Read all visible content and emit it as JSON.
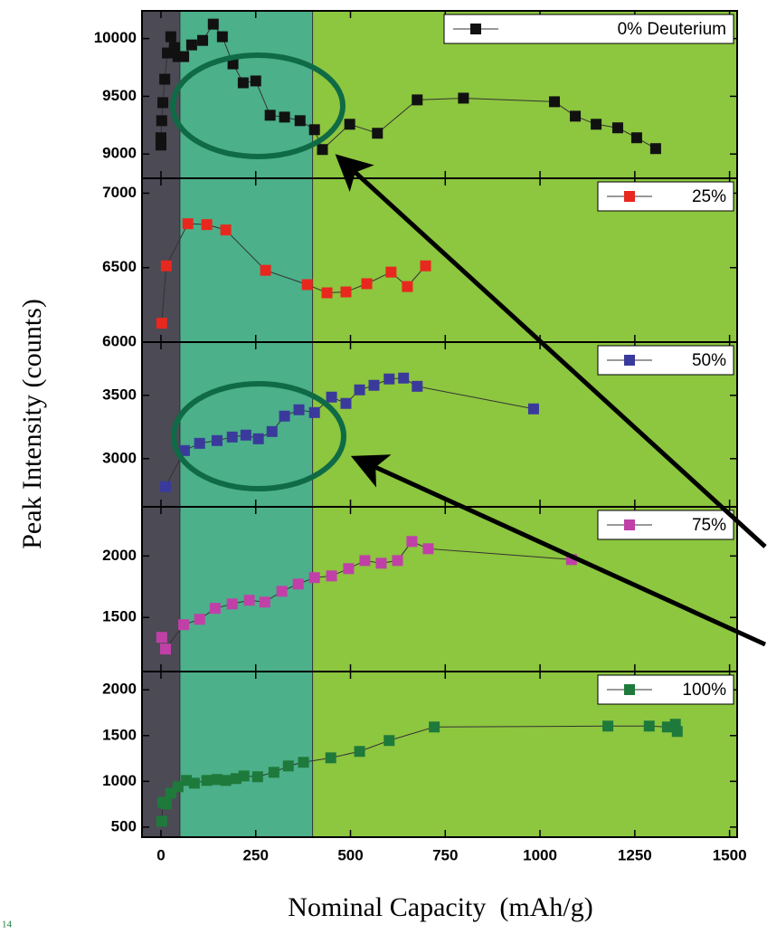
{
  "chart_data": [
    {
      "type": "scatter_line",
      "series": [
        {
          "name": "0% Deuterium",
          "color": "#111111",
          "x": [
            0,
            0,
            2,
            5,
            10,
            17,
            26,
            36,
            45,
            60,
            81,
            110,
            138,
            162,
            190,
            217,
            250,
            288,
            326,
            367,
            405,
            426,
            498,
            571,
            676,
            798,
            1038,
            1093,
            1148,
            1205,
            1255,
            1305
          ],
          "values": [
            9078,
            9141,
            9289,
            9445,
            9648,
            9875,
            10016,
            9922,
            9844,
            9844,
            9945,
            9984,
            10125,
            10016,
            9781,
            9617,
            9633,
            9336,
            9320,
            9289,
            9211,
            9039,
            9258,
            9180,
            9469,
            9484,
            9453,
            9328,
            9258,
            9227,
            9141,
            9047
          ]
        }
      ],
      "ylim": [
        8790,
        10240
      ],
      "yticks": [
        9000,
        9500,
        10000
      ],
      "legend": "upper right"
    },
    {
      "type": "scatter_line",
      "series": [
        {
          "name": "25%",
          "color": "#e8281e",
          "x": [
            2,
            14,
            71,
            121,
            171,
            276,
            386,
            438,
            488,
            543,
            607,
            650,
            698
          ],
          "values": [
            6127,
            6512,
            6795,
            6789,
            6753,
            6482,
            6386,
            6331,
            6337,
            6392,
            6470,
            6373,
            6512
          ]
        }
      ],
      "ylim": [
        6000,
        7100
      ],
      "yticks": [
        6000,
        6500,
        7000
      ],
      "legend": "upper right"
    },
    {
      "type": "scatter_line",
      "series": [
        {
          "name": "50%",
          "color": "#3a3a9c",
          "x": [
            12,
            62,
            102,
            148,
            188,
            224,
            257,
            293,
            326,
            364,
            405,
            450,
            488,
            524,
            562,
            602,
            640,
            676,
            983
          ],
          "values": [
            2779,
            3064,
            3121,
            3143,
            3171,
            3186,
            3157,
            3214,
            3336,
            3386,
            3364,
            3486,
            3436,
            3543,
            3579,
            3629,
            3636,
            3571,
            3393
          ]
        }
      ],
      "ylim": [
        2620,
        3920
      ],
      "yticks": [
        3000,
        3500
      ],
      "legend": "upper right",
      "ylabel": "Peak Intensity (counts)"
    },
    {
      "type": "scatter_line",
      "series": [
        {
          "name": "75%",
          "color": "#c040a8",
          "x": [
            2,
            12,
            60,
            102,
            143,
            188,
            233,
            274,
            319,
            362,
            405,
            450,
            495,
            538,
            581,
            624,
            662,
            705,
            1083
          ],
          "values": [
            1338,
            1243,
            1441,
            1485,
            1574,
            1610,
            1640,
            1625,
            1713,
            1772,
            1824,
            1838,
            1897,
            1963,
            1941,
            1963,
            2118,
            2059,
            1971
          ]
        }
      ],
      "ylim": [
        1060,
        2400
      ],
      "yticks": [
        1500,
        2000
      ],
      "legend": "upper right"
    },
    {
      "type": "scatter_line",
      "series": [
        {
          "name": "100%",
          "color": "#1e7a3a",
          "x": [
            2,
            5,
            14,
            26,
            45,
            67,
            88,
            121,
            148,
            171,
            198,
            219,
            255,
            298,
            336,
            376,
            448,
            524,
            602,
            721,
            1179,
            1288,
            1336,
            1357,
            1362
          ],
          "values": [
            564,
            772,
            752,
            871,
            941,
            1010,
            980,
            1010,
            1020,
            1010,
            1030,
            1059,
            1050,
            1099,
            1168,
            1208,
            1257,
            1327,
            1446,
            1594,
            1604,
            1604,
            1594,
            1624,
            1545
          ]
        }
      ],
      "ylim": [
        390,
        2200
      ],
      "yticks": [
        500,
        1000,
        1500,
        2000
      ],
      "legend": "upper right",
      "xlim": [
        -50,
        1520
      ],
      "xticks": [
        0,
        250,
        500,
        750,
        1000,
        1250,
        1500
      ],
      "xlabel": "Nominal Capacity  (mAh/g)",
      "region_bounds": [
        50,
        400
      ],
      "region_colors": [
        "#4b4a55",
        "#4cb08a",
        "#8dc63f"
      ]
    }
  ],
  "page_number": "14"
}
